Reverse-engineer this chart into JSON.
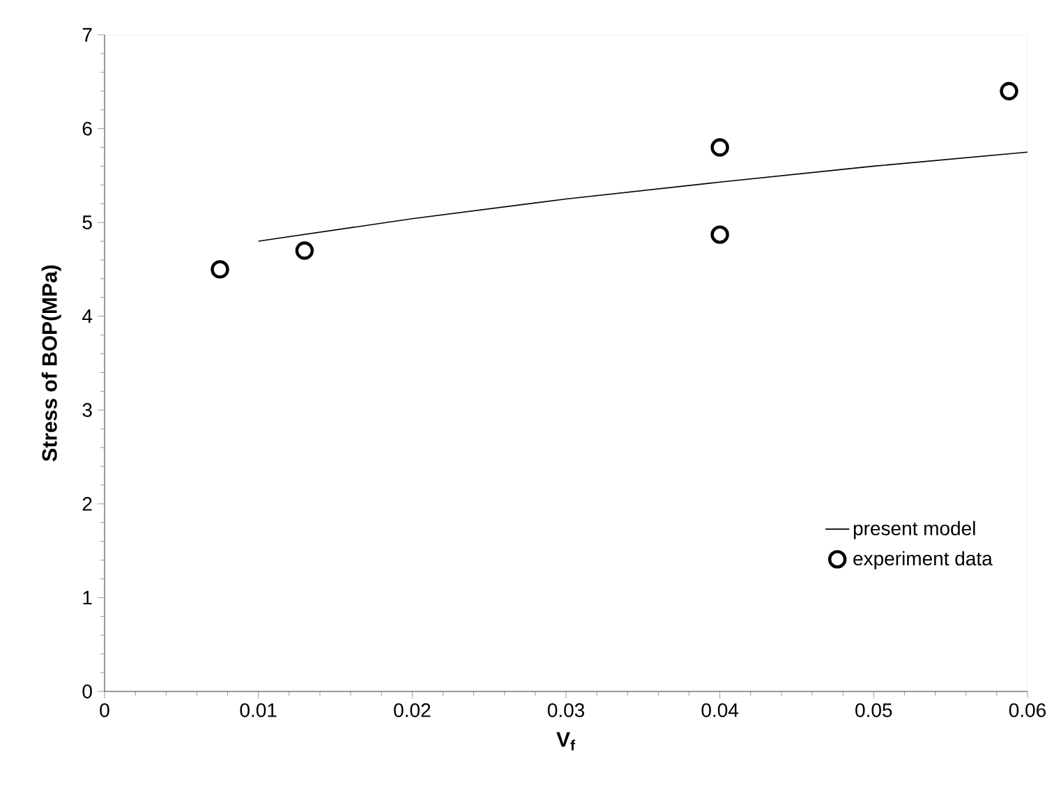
{
  "chart_data": {
    "type": "scatter",
    "xlabel": "**V$_{f}$**",
    "ylabel": "Stress of BOP(MPa)",
    "xlim": [
      0,
      0.06
    ],
    "ylim": [
      0,
      7
    ],
    "xticks": [
      0,
      0.01,
      0.02,
      0.03,
      0.04,
      0.05,
      0.06
    ],
    "yticks": [
      0,
      1,
      2,
      3,
      4,
      5,
      6,
      7
    ],
    "grid": false,
    "legend": "bottom right",
    "series": [
      {
        "name": "present model",
        "type": "line",
        "color": "#000000",
        "marker": "none",
        "line_style": "solid",
        "x": [
          0.01,
          0.02,
          0.03,
          0.04,
          0.05,
          0.06
        ],
        "values": [
          4.8,
          5.04,
          5.25,
          5.43,
          5.6,
          5.75
        ]
      },
      {
        "name": "experiment data",
        "color": "#000000",
        "marker": "circle",
        "x": [
          0.0075,
          0.013,
          0.04,
          0.04,
          0.0588
        ],
        "values": [
          4.5,
          4.7,
          5.8,
          4.87,
          6.4
        ]
      }
    ]
  }
}
